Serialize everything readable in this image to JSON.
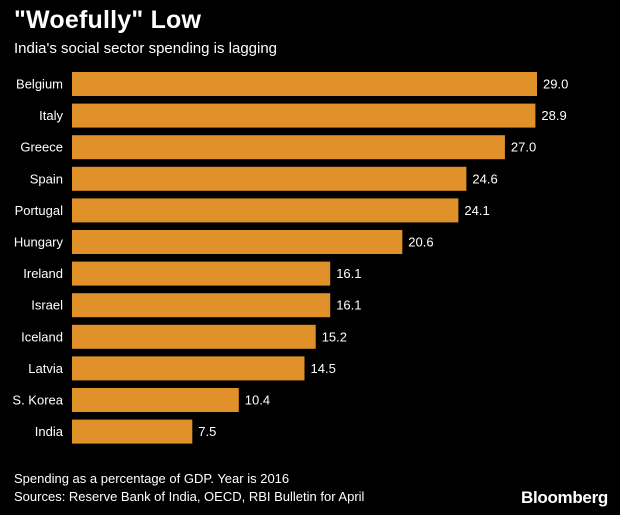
{
  "header": {
    "title": "\"Woefully\" Low",
    "subtitle": "India's social sector spending is lagging"
  },
  "footer": {
    "note": "Spending as a percentage of GDP. Year is 2016",
    "source": "Sources: Reserve Bank of India, OECD, RBI Bulletin for April",
    "brand": "Bloomberg"
  },
  "colors": {
    "bar": "#E0912A",
    "text": "#FFFFFF",
    "background": "#000000"
  },
  "chart_data": {
    "type": "bar",
    "orientation": "horizontal",
    "title": "\"Woefully\" Low",
    "subtitle": "India's social sector spending is lagging",
    "xlabel": "",
    "ylabel": "",
    "xlim": [
      0,
      29.0
    ],
    "grid": false,
    "legend": "none",
    "categories": [
      "Belgium",
      "Italy",
      "Greece",
      "Spain",
      "Portugal",
      "Hungary",
      "Ireland",
      "Israel",
      "Iceland",
      "Latvia",
      "S. Korea",
      "India"
    ],
    "values": [
      29.0,
      28.9,
      27.0,
      24.6,
      24.1,
      20.6,
      16.1,
      16.1,
      15.2,
      14.5,
      10.4,
      7.5
    ],
    "value_labels": [
      "29.0",
      "28.9",
      "27.0",
      "24.6",
      "24.1",
      "20.6",
      "16.1",
      "16.1",
      "15.2",
      "14.5",
      "10.4",
      "7.5"
    ]
  }
}
